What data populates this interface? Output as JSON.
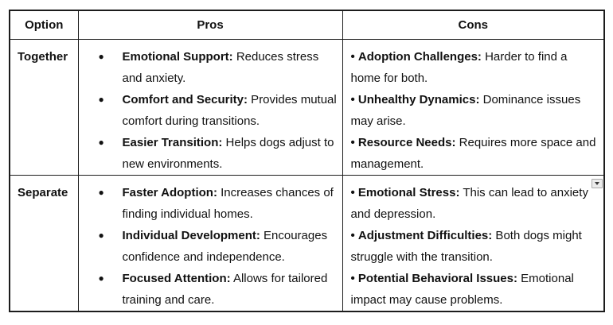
{
  "colors": {
    "background": "#ffffff",
    "text": "#111111",
    "table_border": "#1c1c1c",
    "widget_bg": "#ececec",
    "widget_border": "#a9a9a9",
    "widget_arrow": "#3a3a3a"
  },
  "icons": {
    "dropdown": "chevron-down-icon"
  },
  "table": {
    "headers": {
      "option": "Option",
      "pros": "Pros",
      "cons": "Cons"
    },
    "rows": [
      {
        "option": "Together",
        "pros": [
          {
            "label": "Emotional Support:",
            "text": " Reduces stress and anxiety."
          },
          {
            "label": "Comfort and Security:",
            "text": " Provides mutual comfort during transitions."
          },
          {
            "label": "Easier Transition:",
            "text": " Helps dogs adjust to new environments."
          }
        ],
        "cons": [
          {
            "label": "Adoption Challenges:",
            "text": " Harder to find a home for both."
          },
          {
            "label": "Unhealthy Dynamics:",
            "text": " Dominance issues may arise."
          },
          {
            "label": "Resource Needs:",
            "text": " Requires more space and management."
          }
        ]
      },
      {
        "option": "Separate",
        "pros": [
          {
            "label": "Faster Adoption:",
            "text": " Increases chances of finding individual homes."
          },
          {
            "label": "Individual Development:",
            "text": " Encourages confidence and independence."
          },
          {
            "label": "Focused Attention:",
            "text": " Allows for tailored training and care."
          }
        ],
        "cons": [
          {
            "label": "Emotional Stress:",
            "text": " This can lead to anxiety and depression."
          },
          {
            "label": "Adjustment Difficulties:",
            "text": " Both dogs might struggle with the transition."
          },
          {
            "label": "Potential Behavioral Issues:",
            "text": " Emotional impact may cause problems."
          }
        ]
      }
    ]
  }
}
